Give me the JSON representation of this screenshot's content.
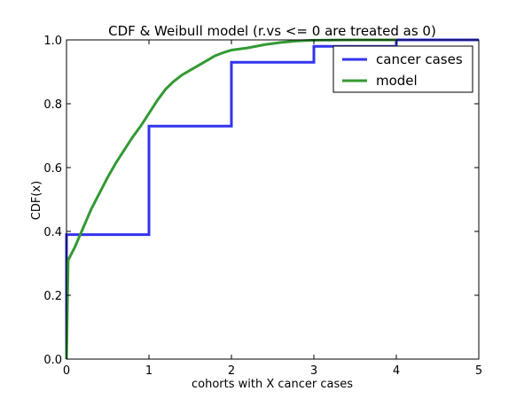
{
  "chart_data": {
    "type": "line",
    "title": "CDF & Weibull model (r.vs <= 0 are treated as 0)",
    "xlabel": "cohorts with X cancer cases",
    "ylabel": "CDF(x)",
    "xlim": [
      0,
      5
    ],
    "ylim": [
      0,
      1
    ],
    "x_ticks": [
      "0",
      "1",
      "2",
      "3",
      "4",
      "5"
    ],
    "y_ticks": [
      "0.0",
      "0.2",
      "0.4",
      "0.6",
      "0.8",
      "1.0"
    ],
    "grid": false,
    "legend_position": "top-right",
    "series": [
      {
        "name": "cancer cases",
        "style": "step",
        "color": "#3333ee",
        "x": [
          0,
          0,
          1,
          1,
          2,
          2,
          3,
          3,
          4,
          4,
          5
        ],
        "y": [
          0,
          0.39,
          0.39,
          0.73,
          0.73,
          0.93,
          0.93,
          0.98,
          0.98,
          1.0,
          1.0
        ]
      },
      {
        "name": "model",
        "style": "line",
        "color": "#339933",
        "x": [
          0,
          0.02,
          0.1,
          0.2,
          0.3,
          0.4,
          0.5,
          0.6,
          0.7,
          0.8,
          0.9,
          1.0,
          1.1,
          1.2,
          1.3,
          1.4,
          1.5,
          1.6,
          1.7,
          1.8,
          1.9,
          2.0,
          2.2,
          2.4,
          2.6,
          2.8,
          3.0,
          3.5,
          4.0
        ],
        "y": [
          0,
          0.31,
          0.35,
          0.41,
          0.47,
          0.52,
          0.57,
          0.615,
          0.655,
          0.695,
          0.73,
          0.77,
          0.81,
          0.845,
          0.87,
          0.89,
          0.905,
          0.92,
          0.935,
          0.95,
          0.96,
          0.968,
          0.975,
          0.985,
          0.992,
          0.997,
          0.999,
          1.0,
          1.0
        ]
      }
    ]
  }
}
